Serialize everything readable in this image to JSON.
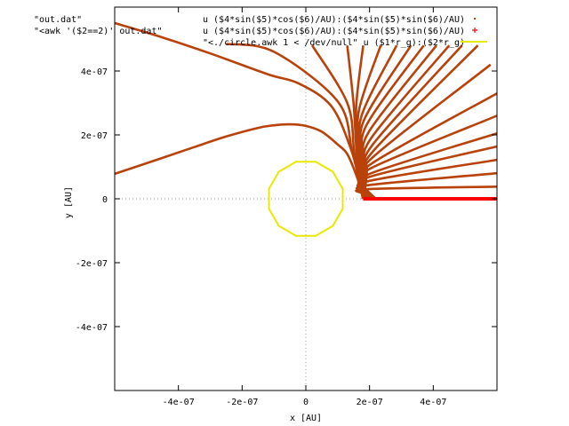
{
  "chart_data": {
    "type": "scatter",
    "xlabel": "x [AU]",
    "ylabel": "y [AU]",
    "xlim": [
      -6e-07,
      6e-07
    ],
    "ylim": [
      -6e-07,
      6e-07
    ],
    "xticks": [
      -4e-07,
      -2e-07,
      0,
      2e-07,
      4e-07
    ],
    "yticks": [
      -4e-07,
      -2e-07,
      0,
      2e-07,
      4e-07
    ],
    "xtick_labels": [
      "-4e-07",
      "-2e-07",
      "0",
      "2e-07",
      "4e-07"
    ],
    "ytick_labels": [
      "-4e-07",
      "-2e-07",
      "0",
      "2e-07",
      "4e-07"
    ],
    "grid": "dotted zero axes",
    "legend_position": "top",
    "legend": [
      {
        "file": "\"out.dat\"",
        "using": "u ($4*sin($5)*cos($6)/AU):($4*sin($5)*sin($6)/AU)",
        "marker": "dot",
        "color": "#b8420a"
      },
      {
        "file": "\"<awk '($2==2)' out.dat\"",
        "using": "u ($4*sin($5)*cos($6)/AU):($4*sin($5)*sin($6)/AU)",
        "marker": "plus",
        "color": "#ff0000"
      },
      {
        "file": "\"<./circle.awk 1 < /dev/null\" u ($1*r_g):($2*r_g)",
        "using": "",
        "marker": "line",
        "color": "#e8e800"
      }
    ],
    "series": [
      {
        "color": "#b8420a",
        "points": [
          [
            1.79e-07,
            0
          ],
          [
            1.8e-07,
            2e-09
          ],
          [
            1.83e-07,
            1.5e-08
          ],
          [
            1.9e-07,
            3e-08
          ],
          [
            6e-07,
            3.8e-08
          ]
        ]
      },
      {
        "color": "#b8420a",
        "points": [
          [
            1.79e-07,
            0
          ],
          [
            1.8e-07,
            5e-09
          ],
          [
            1.84e-07,
            2e-08
          ],
          [
            1.92e-07,
            4.2e-08
          ],
          [
            6e-07,
            8e-08
          ]
        ]
      },
      {
        "color": "#b8420a",
        "points": [
          [
            1.79e-07,
            0
          ],
          [
            1.8e-07,
            6e-09
          ],
          [
            1.85e-07,
            2.6e-08
          ],
          [
            1.95e-07,
            5.5e-08
          ],
          [
            6e-07,
            1.22e-07
          ]
        ]
      },
      {
        "color": "#b8420a",
        "points": [
          [
            1.79e-07,
            0
          ],
          [
            1.8e-07,
            8e-09
          ],
          [
            1.86e-07,
            3.2e-08
          ],
          [
            1.98e-07,
            6.8e-08
          ],
          [
            6e-07,
            1.64e-07
          ]
        ]
      },
      {
        "color": "#b8420a",
        "points": [
          [
            1.79e-07,
            0
          ],
          [
            1.8e-07,
            1e-08
          ],
          [
            1.87e-07,
            3.8e-08
          ],
          [
            2e-07,
            7.8e-08
          ],
          [
            6e-07,
            2.05e-07
          ]
        ]
      },
      {
        "color": "#b8420a",
        "points": [
          [
            1.79e-07,
            0
          ],
          [
            1.8e-07,
            1.2e-08
          ],
          [
            1.88e-07,
            4.6e-08
          ],
          [
            2.03e-07,
            9.5e-08
          ],
          [
            6e-07,
            2.6e-07
          ]
        ]
      },
      {
        "color": "#b8420a",
        "points": [
          [
            1.79e-07,
            0
          ],
          [
            1.81e-07,
            1.5e-08
          ],
          [
            1.89e-07,
            5.5e-08
          ],
          [
            2.06e-07,
            1.1e-07
          ],
          [
            6e-07,
            3.3e-07
          ]
        ]
      },
      {
        "color": "#b8420a",
        "points": [
          [
            1.79e-07,
            0
          ],
          [
            1.81e-07,
            1.8e-08
          ],
          [
            1.9e-07,
            6.5e-08
          ],
          [
            2.1e-07,
            1.3e-07
          ],
          [
            5.8e-07,
            4.2e-07
          ]
        ]
      },
      {
        "color": "#b8420a",
        "points": [
          [
            1.79e-07,
            0
          ],
          [
            1.81e-07,
            2.1e-08
          ],
          [
            1.91e-07,
            7.8e-08
          ],
          [
            2.12e-07,
            1.5e-07
          ],
          [
            5.4e-07,
            4.8e-07
          ]
        ]
      },
      {
        "color": "#b8420a",
        "points": [
          [
            1.79e-07,
            0
          ],
          [
            1.82e-07,
            2.4e-08
          ],
          [
            1.92e-07,
            9e-08
          ],
          [
            2.1e-07,
            1.7e-07
          ],
          [
            4.9e-07,
            4.8e-07
          ]
        ]
      },
      {
        "color": "#b8420a",
        "points": [
          [
            1.79e-07,
            0
          ],
          [
            1.82e-07,
            2.7e-08
          ],
          [
            1.9e-07,
            1e-07
          ],
          [
            2.05e-07,
            1.9e-07
          ],
          [
            4.5e-07,
            4.8e-07
          ]
        ]
      },
      {
        "color": "#b8420a",
        "points": [
          [
            1.79e-07,
            0
          ],
          [
            1.81e-07,
            3e-08
          ],
          [
            1.87e-07,
            1.12e-07
          ],
          [
            1.98e-07,
            2.1e-07
          ],
          [
            4.1e-07,
            4.8e-07
          ]
        ]
      },
      {
        "color": "#b8420a",
        "points": [
          [
            1.79e-07,
            0
          ],
          [
            1.8e-07,
            3.2e-08
          ],
          [
            1.84e-07,
            1.2e-07
          ],
          [
            1.9e-07,
            2.3e-07
          ],
          [
            3.7e-07,
            4.8e-07
          ]
        ]
      },
      {
        "color": "#b8420a",
        "points": [
          [
            1.79e-07,
            0
          ],
          [
            1.79e-07,
            3.4e-08
          ],
          [
            1.8e-07,
            1.25e-07
          ],
          [
            1.82e-07,
            2.45e-07
          ],
          [
            3.3e-07,
            4.8e-07
          ]
        ]
      },
      {
        "color": "#b8420a",
        "points": [
          [
            1.79e-07,
            0
          ],
          [
            1.78e-07,
            3.5e-08
          ],
          [
            1.76e-07,
            1.3e-07
          ],
          [
            1.75e-07,
            2.6e-07
          ],
          [
            2.85e-07,
            4.8e-07
          ]
        ]
      },
      {
        "color": "#b8420a",
        "points": [
          [
            1.79e-07,
            0
          ],
          [
            1.77e-07,
            3.6e-08
          ],
          [
            1.71e-07,
            1.34e-07
          ],
          [
            1.66e-07,
            2.74e-07
          ],
          [
            2.35e-07,
            4.8e-07
          ]
        ]
      },
      {
        "color": "#b8420a",
        "points": [
          [
            1.79e-07,
            0
          ],
          [
            1.76e-07,
            3.6e-08
          ],
          [
            1.65e-07,
            1.37e-07
          ],
          [
            1.58e-07,
            2.86e-07
          ],
          [
            1.8e-07,
            4.8e-07
          ]
        ]
      },
      {
        "color": "#b8420a",
        "points": [
          [
            1.79e-07,
            0
          ],
          [
            1.75e-07,
            3.6e-08
          ],
          [
            1.6e-07,
            1.4e-07
          ],
          [
            1.5e-07,
            2.95e-07
          ],
          [
            1.3e-07,
            4.8e-07
          ]
        ]
      },
      {
        "color": "#b8420a",
        "points": [
          [
            1.79e-07,
            0
          ],
          [
            1.73e-07,
            3.6e-08
          ],
          [
            1.52e-07,
            1.45e-07
          ],
          [
            1.3e-07,
            3e-07
          ],
          [
            2e-08,
            4.8e-07
          ]
        ]
      },
      {
        "color": "#b8420a",
        "points": [
          [
            1.79e-07,
            0
          ],
          [
            1.72e-07,
            4e-08
          ],
          [
            1.45e-07,
            1.5e-07
          ],
          [
            1e-07,
            3.05e-07
          ],
          [
            -1e-07,
            4.6e-07
          ],
          [
            -2.5e-07,
            4.85e-07
          ]
        ]
      },
      {
        "color": "#b8420a",
        "points": [
          [
            1.79e-07,
            0
          ],
          [
            1.7e-07,
            5e-08
          ],
          [
            1.4e-07,
            1.6e-07
          ],
          [
            8e-08,
            2.9e-07
          ],
          [
            -2e-08,
            3.6e-07
          ],
          [
            -1.2e-07,
            3.9e-07
          ],
          [
            -3e-07,
            4.55e-07
          ],
          [
            -4.5e-07,
            5.05e-07
          ],
          [
            -6e-07,
            5.5e-07
          ]
        ]
      },
      {
        "color": "#b8420a",
        "points": [
          [
            1.79e-07,
            0
          ],
          [
            1.75e-07,
            2e-08
          ],
          [
            1.6e-07,
            7e-08
          ],
          [
            1.3e-07,
            1.4e-07
          ],
          [
            1e-07,
            1.7e-07
          ],
          [
            5e-08,
            2.1e-07
          ],
          [
            0,
            2.28e-07
          ],
          [
            -5e-08,
            2.33e-07
          ],
          [
            -1e-07,
            2.3e-07
          ],
          [
            -1.5e-07,
            2.22e-07
          ],
          [
            -2.5e-07,
            1.95e-07
          ],
          [
            -3.5e-07,
            1.62e-07
          ],
          [
            -4.5e-07,
            1.28e-07
          ],
          [
            -6e-07,
            7.8e-08
          ]
        ]
      }
    ],
    "red_band": {
      "x": [
        1.8e-07,
        6e-07
      ],
      "y": 0,
      "color": "#ff0000"
    },
    "circle": {
      "center": [
        0,
        0
      ],
      "radius": 1.2e-07,
      "color": "#e8e800"
    }
  }
}
